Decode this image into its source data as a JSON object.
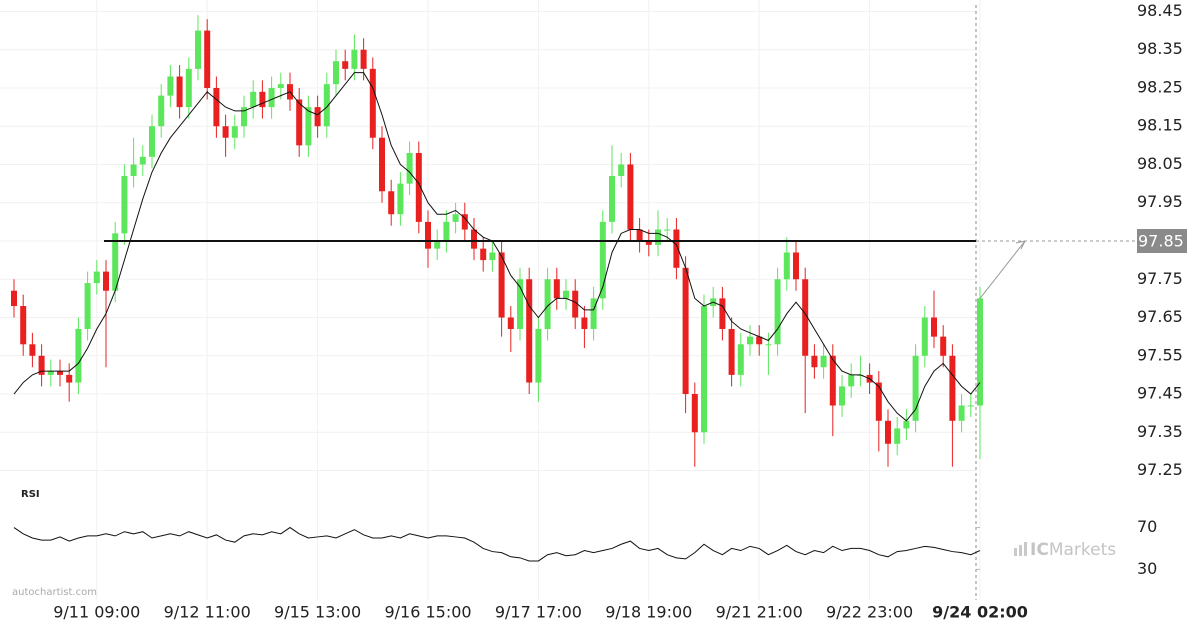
{
  "chart_data": [
    {
      "type": "candlestick",
      "categories": [
        null,
        null,
        null,
        null,
        null,
        null,
        null,
        null,
        null,
        "9/11 09:00",
        null,
        null,
        null,
        null,
        null,
        null,
        null,
        null,
        null,
        null,
        null,
        "9/12 11:00",
        null,
        null,
        null,
        null,
        null,
        null,
        null,
        null,
        null,
        null,
        null,
        "9/15 13:00",
        null,
        null,
        null,
        null,
        null,
        null,
        null,
        null,
        null,
        null,
        null,
        "9/16 15:00",
        null,
        null,
        null,
        null,
        null,
        null,
        null,
        null,
        null,
        null,
        null,
        "9/17 17:00",
        null,
        null,
        null,
        null,
        null,
        null,
        null,
        null,
        null,
        null,
        null,
        "9/18 19:00",
        null,
        null,
        null,
        null,
        null,
        null,
        null,
        null,
        null,
        null,
        null,
        "9/21 21:00",
        null,
        null,
        null,
        null,
        null,
        null,
        null,
        null,
        null,
        null,
        null,
        "9/22 23:00",
        null,
        null,
        null,
        null,
        null,
        null,
        null,
        null,
        null,
        null,
        null,
        "9/24 02:00"
      ],
      "open": [
        97.72,
        97.68,
        97.58,
        97.55,
        97.5,
        97.51,
        97.5,
        97.48,
        97.62,
        97.74,
        97.77,
        97.72,
        97.87,
        98.02,
        98.05,
        98.07,
        98.15,
        98.23,
        98.28,
        98.2,
        98.3,
        98.4,
        98.25,
        98.15,
        98.12,
        98.15,
        98.2,
        98.24,
        98.2,
        98.25,
        98.26,
        98.22,
        98.1,
        98.2,
        98.15,
        98.26,
        98.32,
        98.3,
        98.35,
        98.3,
        98.12,
        97.98,
        97.92,
        98.0,
        98.08,
        97.9,
        97.83,
        97.85,
        97.9,
        97.92,
        97.88,
        97.83,
        97.8,
        97.82,
        97.65,
        97.62,
        97.75,
        97.48,
        97.62,
        97.75,
        97.7,
        97.72,
        97.65,
        97.62,
        97.7,
        97.9,
        98.02,
        98.05,
        97.88,
        97.85,
        97.84,
        97.88,
        97.88,
        97.78,
        97.45,
        97.35,
        97.68,
        97.7,
        97.62,
        97.5,
        97.58,
        97.6,
        97.58,
        97.58,
        97.75,
        97.82,
        97.75,
        97.55,
        97.52,
        97.55,
        97.42,
        97.47,
        97.5,
        97.5,
        97.48,
        97.38,
        97.32,
        97.36,
        97.38,
        97.55,
        97.65,
        97.6,
        97.55,
        97.38,
        97.42,
        97.42
      ],
      "high": [
        97.75,
        97.71,
        97.61,
        97.58,
        97.54,
        97.54,
        97.53,
        97.65,
        97.77,
        97.8,
        97.8,
        97.9,
        98.05,
        98.12,
        98.1,
        98.18,
        98.26,
        98.31,
        98.31,
        98.33,
        98.44,
        98.43,
        98.28,
        98.18,
        98.18,
        98.23,
        98.27,
        98.27,
        98.28,
        98.29,
        98.29,
        98.25,
        98.23,
        98.23,
        98.29,
        98.35,
        98.35,
        98.39,
        98.38,
        98.33,
        98.15,
        98.01,
        98.03,
        98.11,
        98.11,
        97.93,
        97.88,
        97.93,
        97.95,
        97.95,
        97.91,
        97.86,
        97.85,
        97.85,
        97.68,
        97.78,
        97.78,
        97.65,
        97.78,
        97.78,
        97.75,
        97.75,
        97.68,
        97.73,
        97.93,
        98.1,
        98.08,
        98.08,
        97.91,
        97.88,
        97.93,
        97.91,
        97.91,
        97.81,
        97.48,
        97.71,
        97.73,
        97.73,
        97.65,
        97.61,
        97.63,
        97.63,
        97.61,
        97.78,
        97.86,
        97.85,
        97.78,
        97.58,
        97.58,
        97.58,
        97.5,
        97.53,
        97.55,
        97.53,
        97.51,
        97.41,
        97.39,
        97.41,
        97.58,
        97.68,
        97.72,
        97.63,
        97.58,
        97.45,
        97.45,
        97.73
      ],
      "low": [
        97.65,
        97.55,
        97.52,
        97.47,
        97.47,
        97.47,
        97.43,
        97.45,
        97.59,
        97.71,
        97.52,
        97.69,
        97.84,
        97.99,
        98.02,
        98.04,
        98.12,
        98.2,
        98.17,
        98.17,
        98.27,
        98.22,
        98.12,
        98.07,
        98.09,
        98.12,
        98.17,
        98.17,
        98.17,
        98.22,
        98.19,
        98.07,
        98.07,
        98.12,
        98.12,
        98.23,
        98.27,
        98.27,
        98.27,
        98.09,
        97.95,
        97.89,
        97.89,
        97.97,
        97.87,
        97.78,
        97.8,
        97.82,
        97.87,
        97.85,
        97.8,
        97.77,
        97.77,
        97.6,
        97.56,
        97.59,
        97.45,
        97.43,
        97.59,
        97.67,
        97.67,
        97.62,
        97.57,
        97.59,
        97.67,
        97.87,
        97.99,
        97.85,
        97.82,
        97.81,
        97.81,
        97.85,
        97.75,
        97.4,
        97.26,
        97.32,
        97.65,
        97.59,
        97.47,
        97.47,
        97.55,
        97.55,
        97.5,
        97.55,
        97.72,
        97.72,
        97.4,
        97.49,
        97.49,
        97.34,
        97.39,
        97.44,
        97.47,
        97.45,
        97.3,
        97.26,
        97.29,
        97.33,
        97.35,
        97.52,
        97.57,
        97.52,
        97.26,
        97.35,
        97.39,
        97.28
      ],
      "close": [
        97.68,
        97.58,
        97.55,
        97.5,
        97.51,
        97.5,
        97.48,
        97.62,
        97.74,
        97.77,
        97.72,
        97.87,
        98.02,
        98.05,
        98.07,
        98.15,
        98.23,
        98.28,
        98.2,
        98.3,
        98.4,
        98.25,
        98.15,
        98.12,
        98.15,
        98.2,
        98.24,
        98.2,
        98.25,
        98.26,
        98.22,
        98.1,
        98.2,
        98.15,
        98.26,
        98.32,
        98.3,
        98.35,
        98.3,
        98.12,
        97.98,
        97.92,
        98.0,
        98.08,
        97.9,
        97.83,
        97.85,
        97.9,
        97.92,
        97.88,
        97.83,
        97.8,
        97.82,
        97.65,
        97.62,
        97.75,
        97.48,
        97.62,
        97.75,
        97.7,
        97.72,
        97.65,
        97.62,
        97.7,
        97.9,
        98.02,
        98.05,
        97.88,
        97.85,
        97.84,
        97.88,
        97.88,
        97.78,
        97.45,
        97.35,
        97.68,
        97.7,
        97.62,
        97.5,
        97.58,
        97.6,
        97.58,
        97.58,
        97.75,
        97.82,
        97.75,
        97.55,
        97.52,
        97.55,
        97.42,
        97.47,
        97.5,
        97.5,
        97.48,
        97.38,
        97.32,
        97.36,
        97.38,
        97.55,
        97.65,
        97.6,
        97.55,
        97.38,
        97.42,
        97.42,
        97.7
      ],
      "up_color": "#5ce65c",
      "down_color": "#e82020",
      "moving_average": {
        "color": "#111111",
        "values": [
          97.45,
          97.48,
          97.5,
          97.51,
          97.51,
          97.51,
          97.51,
          97.53,
          97.57,
          97.62,
          97.66,
          97.72,
          97.8,
          97.88,
          97.96,
          98.03,
          98.08,
          98.12,
          98.15,
          98.18,
          98.21,
          98.24,
          98.22,
          98.2,
          98.19,
          98.19,
          98.2,
          98.21,
          98.22,
          98.23,
          98.24,
          98.21,
          98.19,
          98.18,
          98.2,
          98.23,
          98.26,
          98.29,
          98.29,
          98.25,
          98.18,
          98.1,
          98.05,
          98.03,
          98.0,
          97.95,
          97.92,
          97.92,
          97.93,
          97.91,
          97.88,
          97.86,
          97.85,
          97.81,
          97.76,
          97.73,
          97.68,
          97.65,
          97.68,
          97.7,
          97.7,
          97.69,
          97.67,
          97.67,
          97.73,
          97.82,
          97.87,
          97.88,
          97.88,
          97.87,
          97.87,
          97.86,
          97.84,
          97.78,
          97.7,
          97.68,
          97.69,
          97.68,
          97.64,
          97.62,
          97.61,
          97.6,
          97.59,
          97.62,
          97.66,
          97.69,
          97.66,
          97.62,
          97.58,
          97.54,
          97.51,
          97.5,
          97.5,
          97.49,
          97.47,
          97.43,
          97.4,
          97.38,
          97.41,
          97.47,
          97.51,
          97.53,
          97.5,
          97.47,
          97.45,
          97.48
        ]
      },
      "level": 97.85,
      "ylim": [
        97.22,
        98.48
      ],
      "yticks": [
        98.45,
        98.35,
        98.25,
        98.15,
        98.05,
        97.95,
        97.85,
        97.75,
        97.65,
        97.55,
        97.45,
        97.35,
        97.25
      ],
      "grid": true
    },
    {
      "type": "line",
      "title": "RSI",
      "color": "#111111",
      "values": [
        70,
        64,
        60,
        58,
        58,
        61,
        57,
        60,
        62,
        62,
        64,
        62,
        66,
        64,
        66,
        60,
        62,
        64,
        62,
        66,
        63,
        60,
        63,
        58,
        56,
        62,
        64,
        63,
        66,
        64,
        70,
        64,
        60,
        61,
        62,
        60,
        64,
        68,
        63,
        60,
        60,
        62,
        60,
        64,
        62,
        60,
        62,
        62,
        61,
        60,
        56,
        50,
        47,
        46,
        42,
        41,
        38,
        38,
        44,
        46,
        43,
        44,
        48,
        46,
        48,
        50,
        54,
        57,
        50,
        48,
        50,
        44,
        41,
        40,
        46,
        54,
        48,
        44,
        50,
        48,
        52,
        50,
        44,
        48,
        53,
        47,
        44,
        48,
        46,
        52,
        48,
        50,
        50,
        48,
        44,
        42,
        47,
        48,
        50,
        52,
        51,
        49,
        47,
        46,
        44,
        48
      ],
      "ylim": [
        15,
        82
      ],
      "yticks": [
        70,
        30
      ]
    }
  ],
  "branding": {
    "source": "autochartist.com",
    "broker_prefix": "IC",
    "broker_name": "Markets"
  }
}
